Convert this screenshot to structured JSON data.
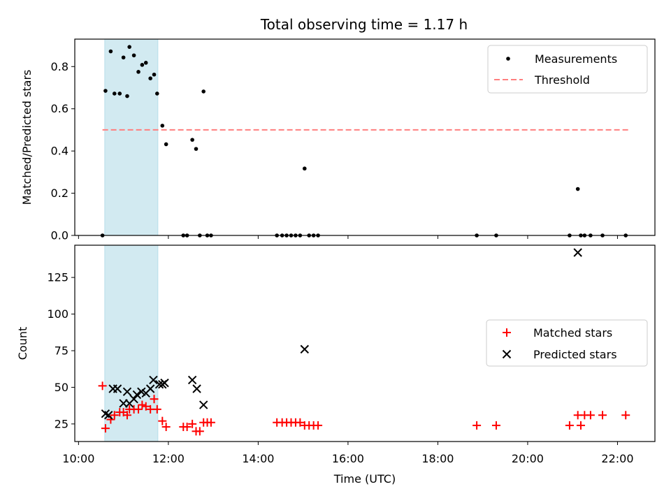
{
  "chart_data": [
    {
      "type": "scatter",
      "title": "Total observing time = 1.17 h",
      "ylabel": "Matched/Predicted stars",
      "ylim": [
        0,
        0.93
      ],
      "yticks": [
        "0.0",
        "0.2",
        "0.4",
        "0.6",
        "0.8"
      ],
      "highlight_span": [
        "10:35",
        "11:46"
      ],
      "legend": {
        "placement": "top-right",
        "entries": [
          "Measurements",
          "Threshold"
        ]
      },
      "threshold": {
        "value": 0.5,
        "x_range": [
          "10:32",
          "22:15"
        ],
        "color": "#ff7f7f"
      },
      "series": [
        {
          "name": "Measurements",
          "marker": "dot",
          "color": "#000000",
          "points": [
            [
              "10:32",
              0.0
            ],
            [
              "10:36",
              0.685
            ],
            [
              "10:43",
              0.872
            ],
            [
              "10:48",
              0.672
            ],
            [
              "10:55",
              0.672
            ],
            [
              "11:00",
              0.843
            ],
            [
              "11:05",
              0.66
            ],
            [
              "11:08",
              0.893
            ],
            [
              "11:14",
              0.853
            ],
            [
              "11:20",
              0.775
            ],
            [
              "11:25",
              0.808
            ],
            [
              "11:30",
              0.818
            ],
            [
              "11:36",
              0.744
            ],
            [
              "11:41",
              0.762
            ],
            [
              "11:45",
              0.672
            ],
            [
              "11:52",
              0.52
            ],
            [
              "11:57",
              0.432
            ],
            [
              "12:20",
              0.0
            ],
            [
              "12:25",
              0.0
            ],
            [
              "12:32",
              0.453
            ],
            [
              "12:37",
              0.41
            ],
            [
              "12:42",
              0.0
            ],
            [
              "12:47",
              0.682
            ],
            [
              "12:52",
              0.0
            ],
            [
              "12:57",
              0.0
            ],
            [
              "14:25",
              0.0
            ],
            [
              "14:32",
              0.0
            ],
            [
              "14:38",
              0.0
            ],
            [
              "14:44",
              0.0
            ],
            [
              "14:50",
              0.0
            ],
            [
              "14:56",
              0.0
            ],
            [
              "15:02",
              0.317
            ],
            [
              "15:08",
              0.0
            ],
            [
              "15:14",
              0.0
            ],
            [
              "15:20",
              0.0
            ],
            [
              "18:52",
              0.0
            ],
            [
              "19:18",
              0.0
            ],
            [
              "20:56",
              0.0
            ],
            [
              "21:07",
              0.22
            ],
            [
              "21:11",
              0.0
            ],
            [
              "21:16",
              0.0
            ],
            [
              "21:24",
              0.0
            ],
            [
              "21:40",
              0.0
            ],
            [
              "22:11",
              0.0
            ]
          ]
        }
      ]
    },
    {
      "type": "scatter",
      "xlabel": "Time (UTC)",
      "ylabel": "Count",
      "ylim": [
        13,
        147
      ],
      "yticks": [
        "25",
        "50",
        "75",
        "100",
        "125"
      ],
      "xlim": [
        "09:55",
        "22:50"
      ],
      "xticks": [
        "10:00",
        "12:00",
        "14:00",
        "16:00",
        "18:00",
        "20:00",
        "22:00"
      ],
      "highlight_span": [
        "10:35",
        "11:46"
      ],
      "legend": {
        "placement": "center-right",
        "entries": [
          "Matched stars",
          "Predicted stars"
        ]
      },
      "series": [
        {
          "name": "Matched stars",
          "marker": "plus",
          "color": "#ff0000",
          "points": [
            [
              "10:32",
              51
            ],
            [
              "10:36",
              22
            ],
            [
              "10:43",
              28
            ],
            [
              "10:48",
              31
            ],
            [
              "10:55",
              33
            ],
            [
              "11:00",
              33
            ],
            [
              "11:05",
              31
            ],
            [
              "11:08",
              35
            ],
            [
              "11:14",
              35
            ],
            [
              "11:20",
              35
            ],
            [
              "11:25",
              38
            ],
            [
              "11:30",
              37
            ],
            [
              "11:36",
              35
            ],
            [
              "11:41",
              42
            ],
            [
              "11:45",
              35
            ],
            [
              "11:52",
              27
            ],
            [
              "11:57",
              23
            ],
            [
              "12:20",
              23
            ],
            [
              "12:25",
              23
            ],
            [
              "12:32",
              25
            ],
            [
              "12:37",
              20
            ],
            [
              "12:42",
              20
            ],
            [
              "12:47",
              26
            ],
            [
              "12:52",
              26
            ],
            [
              "12:57",
              26
            ],
            [
              "14:25",
              26
            ],
            [
              "14:32",
              26
            ],
            [
              "14:38",
              26
            ],
            [
              "14:44",
              26
            ],
            [
              "14:50",
              26
            ],
            [
              "14:56",
              26
            ],
            [
              "15:02",
              24
            ],
            [
              "15:08",
              24
            ],
            [
              "15:14",
              24
            ],
            [
              "15:20",
              24
            ],
            [
              "18:52",
              24
            ],
            [
              "19:18",
              24
            ],
            [
              "20:56",
              24
            ],
            [
              "21:07",
              31
            ],
            [
              "21:11",
              24
            ],
            [
              "21:16",
              31
            ],
            [
              "21:24",
              31
            ],
            [
              "21:40",
              31
            ],
            [
              "22:11",
              31
            ]
          ]
        },
        {
          "name": "Predicted stars",
          "marker": "x",
          "color": "#000000",
          "points": [
            [
              "10:36",
              32
            ],
            [
              "10:40",
              31
            ],
            [
              "10:46",
              49
            ],
            [
              "10:52",
              49
            ],
            [
              "11:00",
              39
            ],
            [
              "11:05",
              47
            ],
            [
              "11:08",
              39
            ],
            [
              "11:14",
              42
            ],
            [
              "11:18",
              45
            ],
            [
              "11:24",
              47
            ],
            [
              "11:30",
              46
            ],
            [
              "11:36",
              49
            ],
            [
              "11:40",
              55
            ],
            [
              "11:48",
              52
            ],
            [
              "11:52",
              52
            ],
            [
              "11:55",
              53
            ],
            [
              "12:32",
              55
            ],
            [
              "12:38",
              49
            ],
            [
              "12:47",
              38
            ],
            [
              "15:02",
              76
            ],
            [
              "21:07",
              142
            ]
          ]
        }
      ]
    }
  ]
}
